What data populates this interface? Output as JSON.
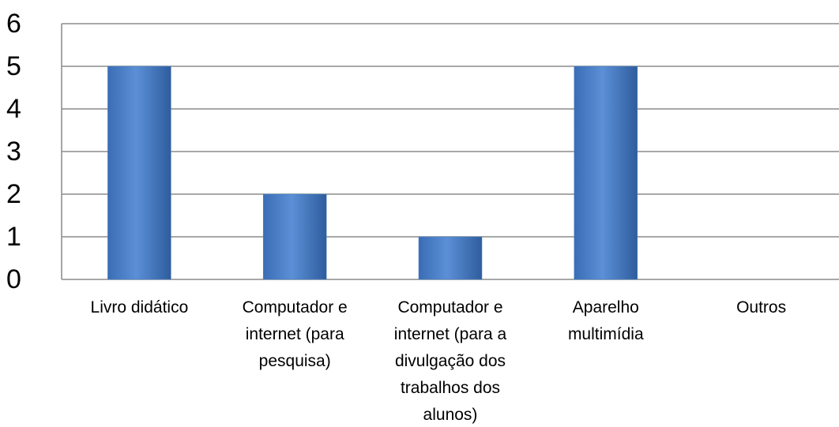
{
  "chart_data": {
    "type": "bar",
    "categories": [
      "Livro didático",
      "Computador e internet (para pesquisa)",
      "Computador e internet (para a divulgação dos trabalhos dos alunos)",
      "Aparelho multimídia",
      "Outros"
    ],
    "values": [
      5,
      2,
      1,
      5,
      0
    ],
    "color": "#4f81bd",
    "ylim": [
      0,
      6
    ],
    "yticks": [
      0,
      1,
      2,
      3,
      4,
      5,
      6
    ],
    "grid": true
  }
}
